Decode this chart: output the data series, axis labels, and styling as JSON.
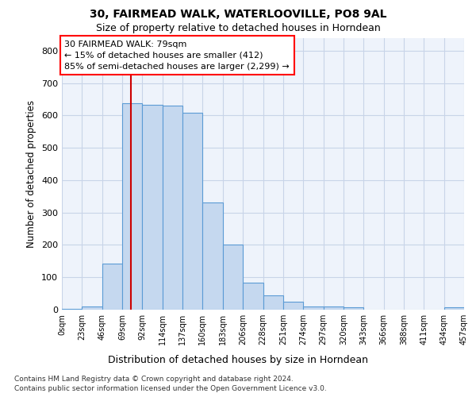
{
  "title1": "30, FAIRMEAD WALK, WATERLOOVILLE, PO8 9AL",
  "title2": "Size of property relative to detached houses in Horndean",
  "xlabel": "Distribution of detached houses by size in Horndean",
  "ylabel": "Number of detached properties",
  "footnote1": "Contains HM Land Registry data © Crown copyright and database right 2024.",
  "footnote2": "Contains public sector information licensed under the Open Government Licence v3.0.",
  "annotation_line1": "30 FAIRMEAD WALK: 79sqm",
  "annotation_line2": "← 15% of detached houses are smaller (412)",
  "annotation_line3": "85% of semi-detached houses are larger (2,299) →",
  "bar_color": "#c5d8ef",
  "bar_edge_color": "#5b9bd5",
  "vline_color": "#cc0000",
  "vline_x": 79,
  "bin_edges": [
    0,
    23,
    46,
    69,
    92,
    115,
    138,
    161,
    184,
    207,
    230,
    253,
    276,
    299,
    322,
    345,
    368,
    391,
    414,
    437,
    460
  ],
  "bar_heights": [
    3,
    10,
    143,
    637,
    632,
    630,
    608,
    330,
    200,
    83,
    45,
    25,
    11,
    10,
    8,
    0,
    0,
    0,
    0,
    8
  ],
  "tick_labels": [
    "0sqm",
    "23sqm",
    "46sqm",
    "69sqm",
    "92sqm",
    "114sqm",
    "137sqm",
    "160sqm",
    "183sqm",
    "206sqm",
    "228sqm",
    "251sqm",
    "274sqm",
    "297sqm",
    "320sqm",
    "343sqm",
    "366sqm",
    "388sqm",
    "411sqm",
    "434sqm",
    "457sqm"
  ],
  "yticks": [
    0,
    100,
    200,
    300,
    400,
    500,
    600,
    700,
    800
  ],
  "ylim": [
    0,
    840
  ],
  "xlim": [
    0,
    460
  ],
  "grid_color": "#c8d4e8",
  "background_color": "#eef3fb"
}
